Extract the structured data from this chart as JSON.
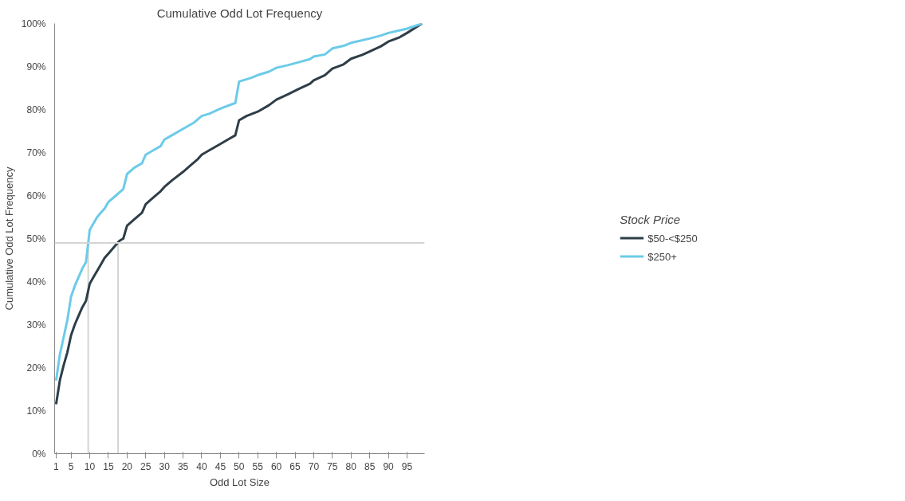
{
  "chart_data": {
    "type": "line",
    "title": "Cumulative Odd Lot Frequency",
    "xlabel": "Odd Lot Size",
    "ylabel": "Cumulative Odd Lot Frequency",
    "legend_title": "Stock Price",
    "legend": "right",
    "grid": false,
    "marker": "none",
    "line_style": "solid",
    "xlim": [
      0.6,
      99.7
    ],
    "xticks": [
      1,
      5,
      10,
      15,
      20,
      25,
      30,
      35,
      40,
      45,
      50,
      55,
      60,
      65,
      70,
      75,
      80,
      85,
      90,
      95
    ],
    "ylim": [
      0,
      100
    ],
    "yticks": [
      {
        "value": 0,
        "label": "0%"
      },
      {
        "value": 10,
        "label": "10%"
      },
      {
        "value": 20,
        "label": "20%"
      },
      {
        "value": 30,
        "label": "30%"
      },
      {
        "value": 40,
        "label": "40%"
      },
      {
        "value": 50,
        "label": "50%"
      },
      {
        "value": 60,
        "label": "60%"
      },
      {
        "value": 70,
        "label": "70%"
      },
      {
        "value": 80,
        "label": "80%"
      },
      {
        "value": 90,
        "label": "90%"
      },
      {
        "value": 100,
        "label": "100%"
      }
    ],
    "ref_lines": [
      {
        "axis": "y",
        "value": 49,
        "color": "#d4d4d4"
      },
      {
        "axis": "x",
        "value": 9.6,
        "color": "#d4d4d4"
      },
      {
        "axis": "x",
        "value": 17.6,
        "color": "#d4d4d4"
      }
    ],
    "series": [
      {
        "name": "$50-<$250",
        "color": "#2e3e48",
        "x": [
          1,
          2,
          3,
          4,
          5,
          6,
          7,
          8,
          9,
          10,
          11,
          12,
          13,
          14,
          15,
          16,
          17,
          18,
          19,
          20,
          22,
          24,
          25,
          27,
          29,
          30,
          32,
          35,
          37,
          39,
          40,
          42,
          45,
          47,
          49,
          50,
          52,
          55,
          58,
          60,
          63,
          66,
          69,
          70,
          73,
          75,
          78,
          80,
          83,
          85,
          88,
          90,
          93,
          95,
          99
        ],
        "values": [
          11.5,
          17,
          20.5,
          23.5,
          27.5,
          30,
          32,
          34,
          35.5,
          39.5,
          41,
          42.5,
          44,
          45.5,
          46.5,
          47.5,
          48.5,
          49.5,
          50,
          53,
          54.5,
          56,
          58,
          59.5,
          61,
          62,
          63.5,
          65.5,
          67,
          68.5,
          69.5,
          70.5,
          72,
          73,
          74,
          77.5,
          78.5,
          79.5,
          81,
          82.3,
          83.5,
          84.8,
          86,
          86.8,
          88,
          89.5,
          90.5,
          91.8,
          92.7,
          93.5,
          94.7,
          95.8,
          96.8,
          97.8,
          100
        ]
      },
      {
        "name": "$250+",
        "color": "#6ccbe8",
        "x": [
          1,
          2,
          3,
          4,
          5,
          6,
          7,
          8,
          9,
          10,
          11,
          12,
          13,
          14,
          15,
          17,
          19,
          20,
          22,
          24,
          25,
          27,
          29,
          30,
          32,
          35,
          38,
          40,
          42,
          45,
          48,
          49,
          50,
          53,
          55,
          58,
          60,
          63,
          66,
          69,
          70,
          73,
          75,
          78,
          80,
          85,
          88,
          90,
          95,
          99
        ],
        "values": [
          17,
          23,
          27,
          31,
          36.5,
          39,
          41,
          43,
          44.5,
          52,
          53.5,
          55,
          56,
          57,
          58.5,
          60,
          61.5,
          65,
          66.5,
          67.5,
          69.5,
          70.5,
          71.5,
          73,
          74,
          75.5,
          77,
          78.5,
          79,
          80.2,
          81.2,
          81.5,
          86.5,
          87.3,
          88,
          88.8,
          89.7,
          90.3,
          91,
          91.7,
          92.3,
          92.8,
          94.2,
          94.8,
          95.5,
          96.5,
          97.2,
          97.8,
          98.8,
          100
        ]
      }
    ]
  }
}
